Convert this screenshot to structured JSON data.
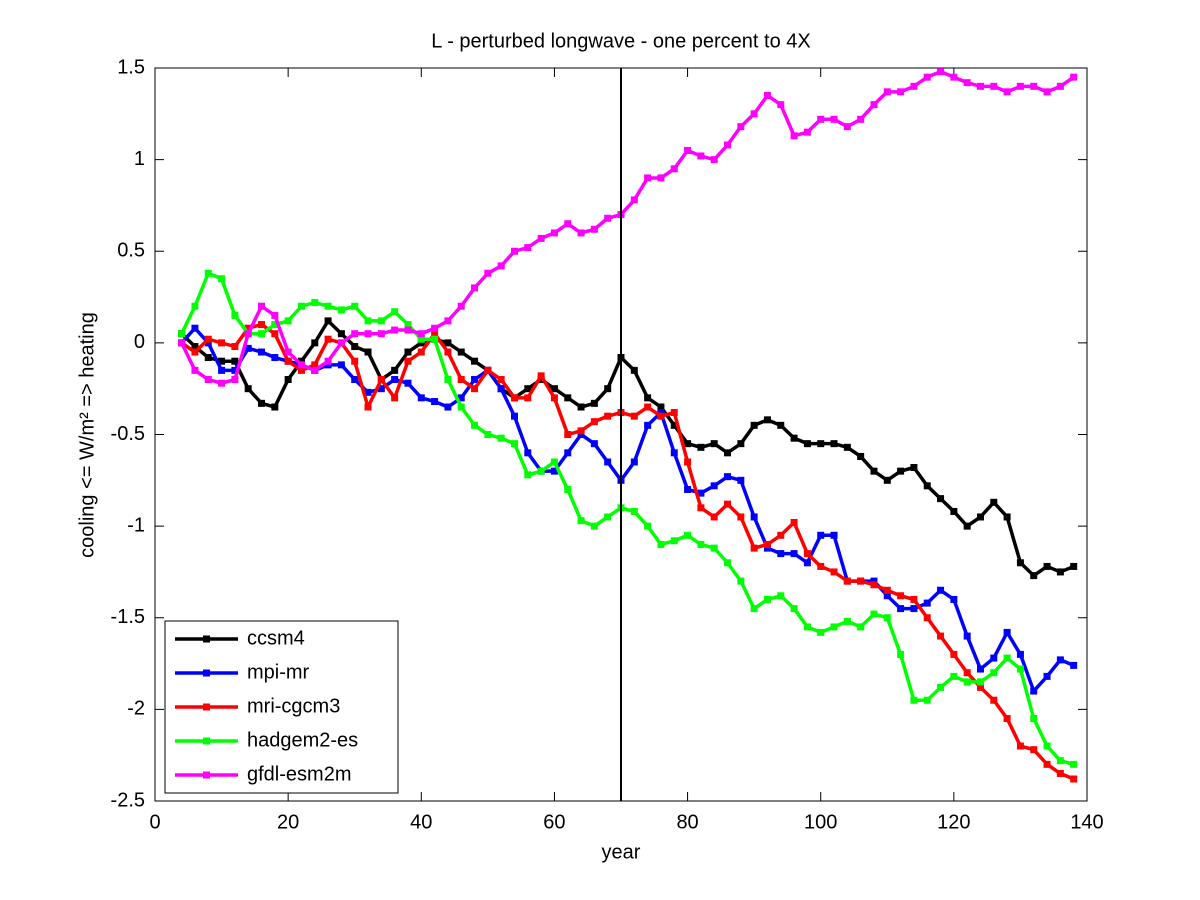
{
  "chart_data": {
    "type": "line",
    "title": "L - perturbed longwave - one percent to 4X",
    "xlabel": "year",
    "ylabel": "cooling <= W/m² => heating",
    "x": [
      4,
      6,
      8,
      10,
      12,
      14,
      16,
      18,
      20,
      22,
      24,
      26,
      28,
      30,
      32,
      34,
      36,
      38,
      40,
      42,
      44,
      46,
      48,
      50,
      52,
      54,
      56,
      58,
      60,
      62,
      64,
      66,
      68,
      70,
      72,
      74,
      76,
      78,
      80,
      82,
      84,
      86,
      88,
      90,
      92,
      94,
      96,
      98,
      100,
      102,
      104,
      106,
      108,
      110,
      112,
      114,
      116,
      118,
      120,
      122,
      124,
      126,
      128,
      130,
      132,
      134,
      136,
      138
    ],
    "series": [
      {
        "name": "ccsm4",
        "color": "#000000",
        "values": [
          0.05,
          -0.02,
          -0.08,
          -0.1,
          -0.1,
          -0.25,
          -0.33,
          -0.35,
          -0.2,
          -0.1,
          0.0,
          0.12,
          0.05,
          -0.02,
          -0.05,
          -0.2,
          -0.15,
          -0.05,
          0.0,
          0.02,
          0.0,
          -0.05,
          -0.1,
          -0.15,
          -0.25,
          -0.3,
          -0.25,
          -0.2,
          -0.25,
          -0.3,
          -0.35,
          -0.33,
          -0.25,
          -0.08,
          -0.15,
          -0.3,
          -0.35,
          -0.45,
          -0.55,
          -0.57,
          -0.55,
          -0.6,
          -0.55,
          -0.45,
          -0.42,
          -0.45,
          -0.52,
          -0.55,
          -0.55,
          -0.55,
          -0.57,
          -0.62,
          -0.7,
          -0.75,
          -0.7,
          -0.68,
          -0.78,
          -0.85,
          -0.92,
          -1.0,
          -0.95,
          -0.87,
          -0.95,
          -1.2,
          -1.27,
          -1.22,
          -1.25,
          -1.22
        ]
      },
      {
        "name": "mpi-mr",
        "color": "#0000ff",
        "values": [
          0.0,
          0.08,
          0.0,
          -0.15,
          -0.15,
          -0.03,
          -0.05,
          -0.08,
          -0.1,
          -0.12,
          -0.15,
          -0.12,
          -0.12,
          -0.2,
          -0.27,
          -0.25,
          -0.2,
          -0.22,
          -0.3,
          -0.32,
          -0.35,
          -0.3,
          -0.2,
          -0.15,
          -0.25,
          -0.4,
          -0.6,
          -0.7,
          -0.7,
          -0.6,
          -0.5,
          -0.55,
          -0.65,
          -0.75,
          -0.65,
          -0.45,
          -0.38,
          -0.6,
          -0.8,
          -0.82,
          -0.78,
          -0.73,
          -0.75,
          -0.95,
          -1.12,
          -1.15,
          -1.15,
          -1.2,
          -1.05,
          -1.05,
          -1.3,
          -1.3,
          -1.3,
          -1.38,
          -1.45,
          -1.45,
          -1.42,
          -1.35,
          -1.4,
          -1.6,
          -1.78,
          -1.72,
          -1.58,
          -1.7,
          -1.9,
          -1.82,
          -1.73,
          -1.76
        ]
      },
      {
        "name": "mri-cgcm3",
        "color": "#ff0000",
        "values": [
          0.0,
          -0.05,
          0.02,
          0.0,
          -0.02,
          0.08,
          0.1,
          0.05,
          -0.1,
          -0.15,
          -0.12,
          0.02,
          0.0,
          -0.1,
          -0.35,
          -0.2,
          -0.3,
          -0.1,
          -0.05,
          0.05,
          -0.05,
          -0.2,
          -0.25,
          -0.15,
          -0.2,
          -0.3,
          -0.3,
          -0.18,
          -0.3,
          -0.5,
          -0.48,
          -0.43,
          -0.4,
          -0.38,
          -0.4,
          -0.35,
          -0.4,
          -0.38,
          -0.65,
          -0.9,
          -0.95,
          -0.88,
          -0.95,
          -1.12,
          -1.1,
          -1.05,
          -0.98,
          -1.15,
          -1.22,
          -1.25,
          -1.3,
          -1.3,
          -1.32,
          -1.35,
          -1.38,
          -1.4,
          -1.5,
          -1.6,
          -1.7,
          -1.8,
          -1.88,
          -1.95,
          -2.05,
          -2.2,
          -2.22,
          -2.3,
          -2.35,
          -2.38
        ]
      },
      {
        "name": "hadgem2-es",
        "color": "#00ff00",
        "values": [
          0.05,
          0.2,
          0.38,
          0.35,
          0.15,
          0.05,
          0.05,
          0.1,
          0.12,
          0.2,
          0.22,
          0.2,
          0.18,
          0.2,
          0.12,
          0.12,
          0.17,
          0.1,
          0.02,
          0.02,
          -0.2,
          -0.35,
          -0.45,
          -0.5,
          -0.52,
          -0.55,
          -0.72,
          -0.7,
          -0.65,
          -0.8,
          -0.97,
          -1.0,
          -0.95,
          -0.9,
          -0.92,
          -1.0,
          -1.1,
          -1.08,
          -1.05,
          -1.1,
          -1.12,
          -1.2,
          -1.3,
          -1.45,
          -1.4,
          -1.38,
          -1.45,
          -1.55,
          -1.58,
          -1.55,
          -1.52,
          -1.55,
          -1.48,
          -1.5,
          -1.7,
          -1.95,
          -1.95,
          -1.88,
          -1.82,
          -1.85,
          -1.85,
          -1.8,
          -1.72,
          -1.78,
          -2.05,
          -2.2,
          -2.28,
          -2.3
        ]
      },
      {
        "name": "gfdl-esm2m",
        "color": "#ff00ff",
        "values": [
          0.0,
          -0.15,
          -0.2,
          -0.22,
          -0.2,
          0.05,
          0.2,
          0.15,
          -0.05,
          -0.12,
          -0.15,
          -0.1,
          0.0,
          0.05,
          0.05,
          0.05,
          0.07,
          0.07,
          0.05,
          0.08,
          0.12,
          0.2,
          0.3,
          0.38,
          0.42,
          0.5,
          0.52,
          0.57,
          0.6,
          0.65,
          0.6,
          0.62,
          0.68,
          0.7,
          0.78,
          0.9,
          0.9,
          0.95,
          1.05,
          1.02,
          1.0,
          1.08,
          1.18,
          1.25,
          1.35,
          1.3,
          1.13,
          1.15,
          1.22,
          1.22,
          1.18,
          1.22,
          1.3,
          1.37,
          1.37,
          1.4,
          1.45,
          1.48,
          1.45,
          1.42,
          1.4,
          1.4,
          1.37,
          1.4,
          1.4,
          1.37,
          1.4,
          1.45
        ]
      }
    ],
    "vline": 70,
    "xlim": [
      0,
      140
    ],
    "xticks": [
      0,
      20,
      40,
      60,
      80,
      100,
      120,
      140
    ],
    "ylim": [
      -2.5,
      1.5
    ],
    "yticks": [
      -2.5,
      -2,
      -1.5,
      -1,
      -0.5,
      0,
      0.5,
      1,
      1.5
    ],
    "grid": false,
    "legend": "southwest"
  }
}
